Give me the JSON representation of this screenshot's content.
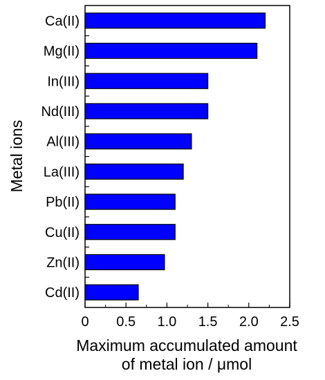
{
  "chart_data": {
    "type": "bar",
    "orientation": "horizontal",
    "title": "",
    "ylabel": "Metal ions",
    "xlabel_lines": [
      "Maximum accumulated amount",
      "of metal ion / μmol"
    ],
    "categories": [
      "Ca(II)",
      "Mg(II)",
      "In(III)",
      "Nd(III)",
      "Al(III)",
      "La(III)",
      "Pb(II)",
      "Cu(II)",
      "Zn(II)",
      "Cd(II)"
    ],
    "values": [
      2.2,
      2.1,
      1.5,
      1.5,
      1.3,
      1.2,
      1.1,
      1.1,
      0.97,
      0.65
    ],
    "xlim": [
      0,
      2.5
    ],
    "xticks": [
      0,
      0.5,
      1.0,
      1.5,
      2.0,
      2.5
    ],
    "xtick_labels": [
      "0",
      "0.5",
      "1.0",
      "1.5",
      "2.0",
      "2.5"
    ],
    "grid": false,
    "legend": "none",
    "bar_color": "#0000ff",
    "bar_edge_color": "#000000"
  }
}
